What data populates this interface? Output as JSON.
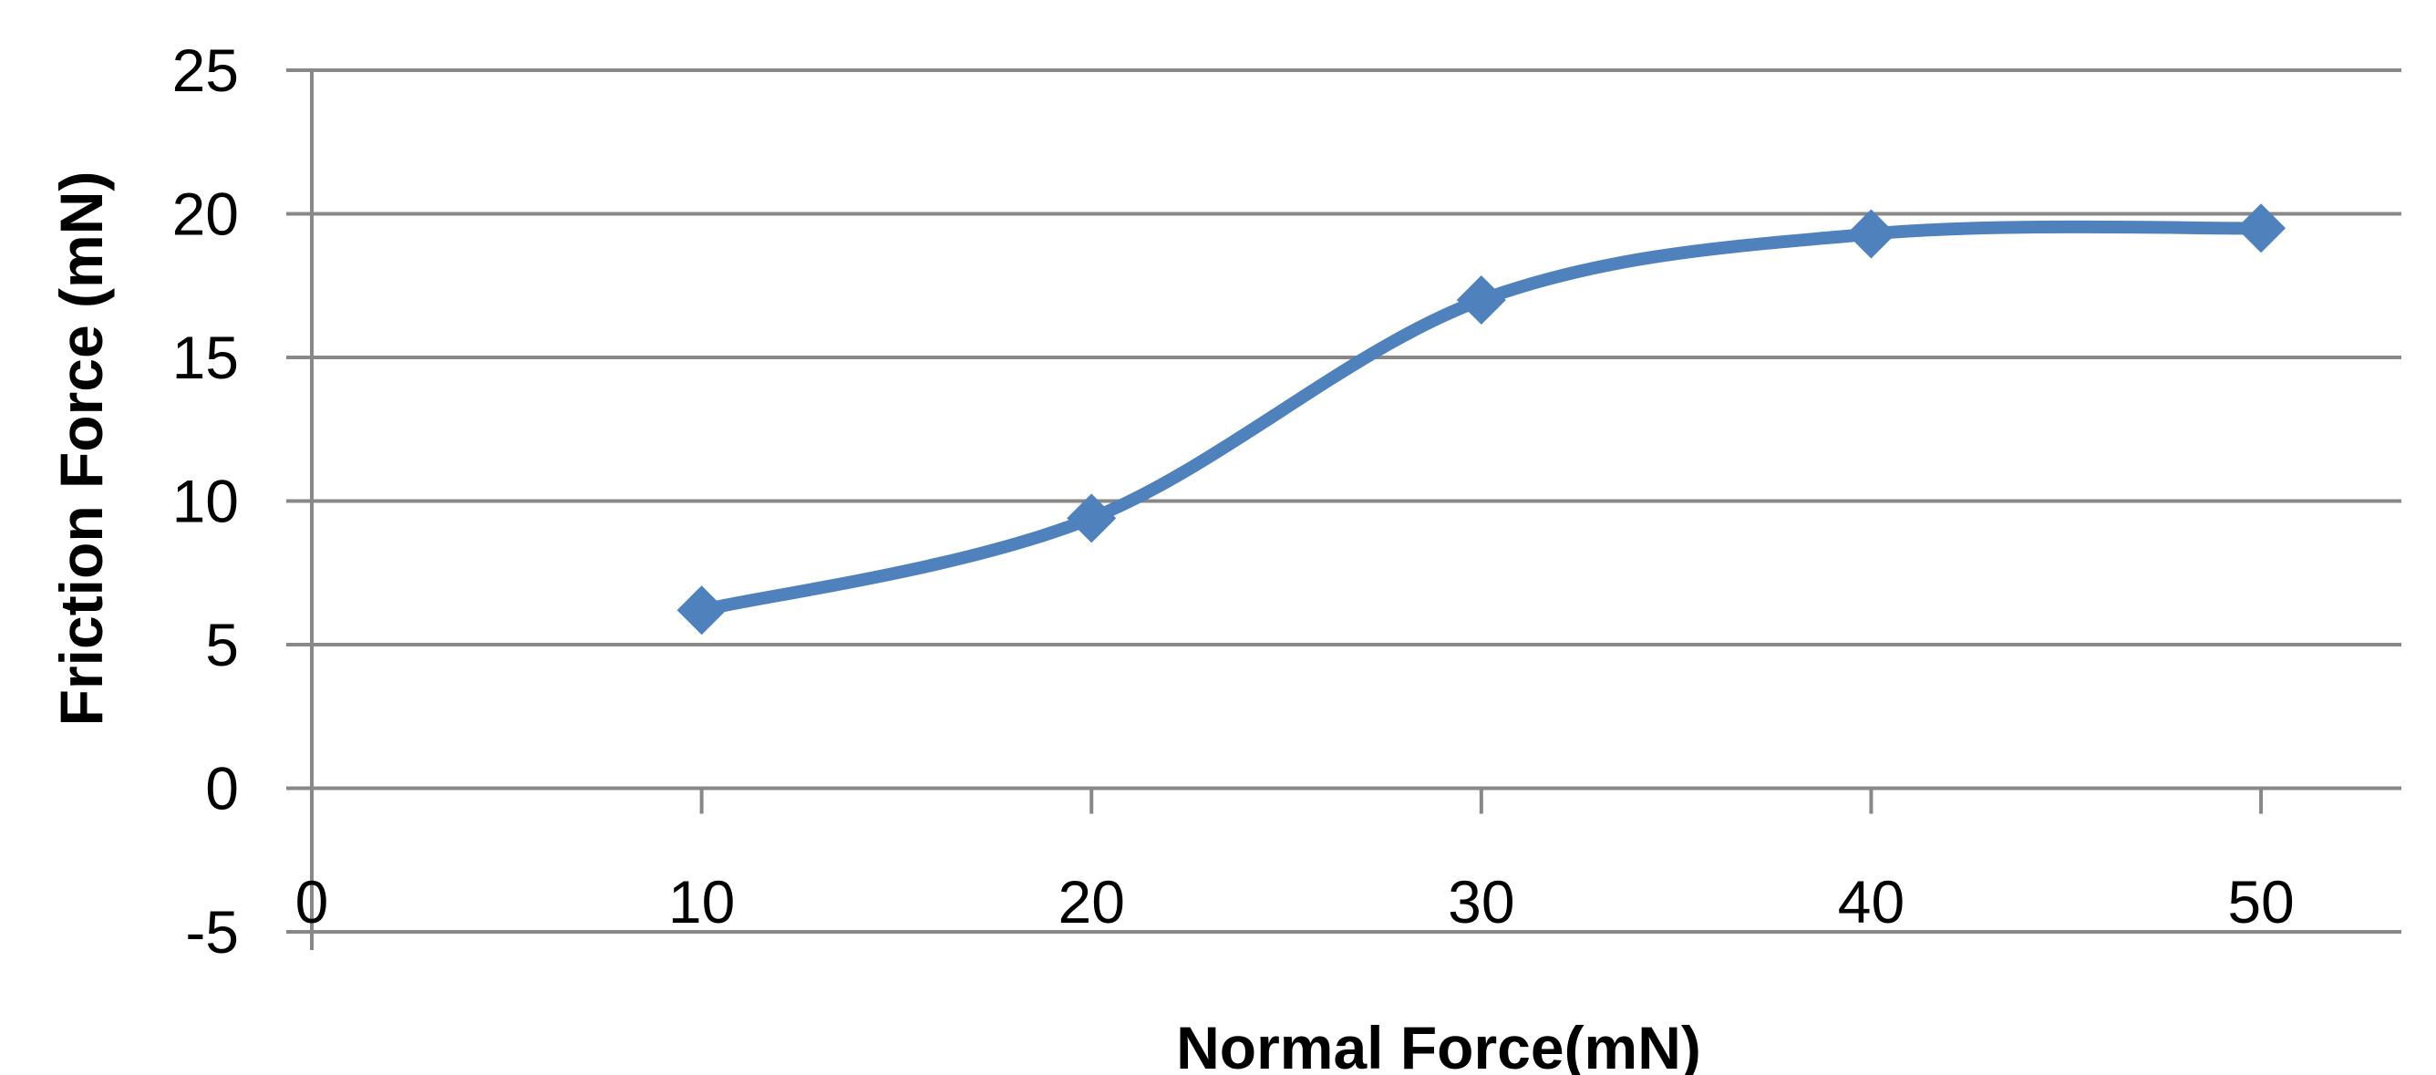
{
  "chart_data": {
    "type": "line",
    "title": "",
    "xlabel": "Normal Force(mN)",
    "ylabel": "Friction Force (mN)",
    "xlim": [
      0,
      53.6
    ],
    "ylim": [
      -5,
      25
    ],
    "x_ticks": [
      0,
      10,
      20,
      30,
      40,
      50
    ],
    "y_ticks": [
      -5,
      0,
      5,
      10,
      15,
      20,
      25
    ],
    "grid": true,
    "smooth": true,
    "marker": "diamond",
    "color": "#4F81BD",
    "series": [
      {
        "x": [
          10,
          20,
          30,
          40,
          50
        ],
        "values": [
          6.2,
          9.4,
          17.0,
          19.3,
          19.5
        ]
      }
    ]
  }
}
